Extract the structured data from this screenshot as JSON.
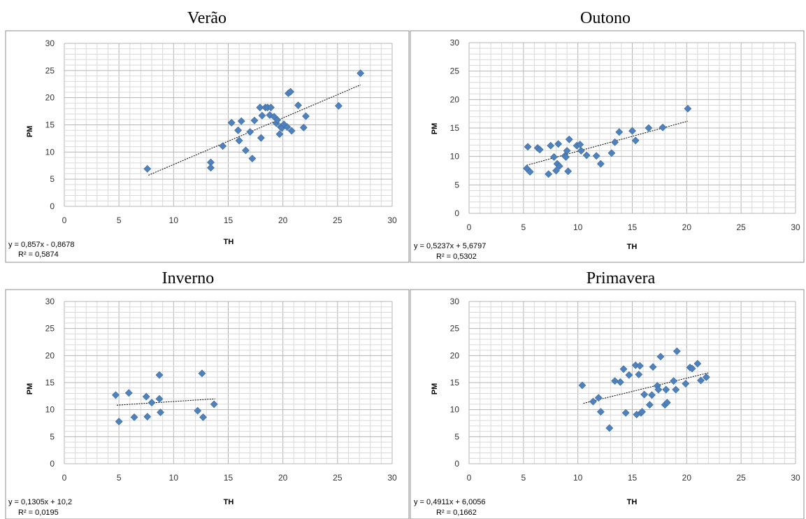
{
  "chart_data": [
    {
      "type": "scatter",
      "title": "Verão",
      "xlabel": "TH",
      "ylabel": "PM",
      "xlim": [
        0,
        30
      ],
      "ylim": [
        0,
        30
      ],
      "xticks": [
        0,
        5,
        10,
        15,
        20,
        25,
        30
      ],
      "yticks": [
        0,
        5,
        10,
        15,
        20,
        25,
        30
      ],
      "grid": true,
      "equation": "y = 0,857x - 0,8678",
      "r2": "R² = 0,5874",
      "trendline": {
        "slope": 0.857,
        "intercept": -0.8678,
        "x_range": [
          7.7,
          27.1
        ]
      },
      "x": [
        7.6,
        13.4,
        13.4,
        14.5,
        15.3,
        15.9,
        16.0,
        16.2,
        16.6,
        17.0,
        17.2,
        17.4,
        17.9,
        18.0,
        18.1,
        18.4,
        18.6,
        18.8,
        18.9,
        19.2,
        19.4,
        19.5,
        19.7,
        19.8,
        19.9,
        20.1,
        20.4,
        20.5,
        20.7,
        20.8,
        21.4,
        21.9,
        22.1,
        25.1,
        27.1
      ],
      "y": [
        6.9,
        8.1,
        7.1,
        11.1,
        15.4,
        14.0,
        12.1,
        15.7,
        10.3,
        13.7,
        8.8,
        15.8,
        18.2,
        12.6,
        16.7,
        18.2,
        18.2,
        16.8,
        18.2,
        16.5,
        15.3,
        15.9,
        13.3,
        14.6,
        14.4,
        15.1,
        14.6,
        20.8,
        21.1,
        13.9,
        18.6,
        14.5,
        16.6,
        18.5,
        24.5
      ]
    },
    {
      "type": "scatter",
      "title": "Outono",
      "xlabel": "TH",
      "ylabel": "PM",
      "xlim": [
        0,
        30
      ],
      "ylim": [
        0,
        30
      ],
      "xticks": [
        0,
        5,
        10,
        15,
        20,
        25,
        30
      ],
      "yticks": [
        0,
        5,
        10,
        15,
        20,
        25,
        30
      ],
      "grid": true,
      "equation": "y = 0,5237x + 5,6797",
      "r2": "R² = 0,5302",
      "trendline": {
        "slope": 0.5237,
        "intercept": 5.6797,
        "x_range": [
          5.3,
          20.1
        ]
      },
      "x": [
        5.3,
        5.4,
        5.6,
        6.3,
        6.5,
        7.3,
        7.5,
        7.8,
        8.0,
        8.1,
        8.2,
        8.3,
        8.8,
        8.9,
        9.0,
        9.1,
        9.2,
        9.9,
        10.2,
        10.3,
        10.8,
        11.7,
        12.1,
        13.1,
        13.4,
        13.8,
        15.0,
        15.3,
        16.5,
        17.8,
        20.1
      ],
      "y": [
        7.9,
        11.7,
        7.3,
        11.5,
        11.2,
        6.9,
        11.9,
        9.9,
        7.5,
        8.7,
        12.2,
        8.3,
        10.1,
        9.9,
        11.0,
        7.4,
        13.0,
        11.9,
        12.1,
        11.0,
        10.2,
        10.1,
        8.7,
        10.6,
        12.5,
        14.3,
        14.5,
        12.8,
        15.0,
        15.1,
        18.4
      ]
    },
    {
      "type": "scatter",
      "title": "Inverno",
      "xlabel": "TH",
      "ylabel": "PM",
      "xlim": [
        0,
        30
      ],
      "ylim": [
        0,
        30
      ],
      "xticks": [
        0,
        5,
        10,
        15,
        20,
        25,
        30
      ],
      "yticks": [
        0,
        5,
        10,
        15,
        20,
        25,
        30
      ],
      "grid": true,
      "equation": "y = 0,1305x + 10,2",
      "r2": "R² = 0,0195",
      "trendline": {
        "slope": 0.1305,
        "intercept": 10.2,
        "x_range": [
          4.8,
          13.8
        ]
      },
      "x": [
        4.7,
        5.0,
        5.9,
        6.4,
        7.5,
        7.6,
        8.0,
        8.7,
        8.7,
        8.8,
        12.2,
        12.6,
        12.7,
        13.7
      ],
      "y": [
        12.7,
        7.8,
        13.1,
        8.6,
        12.4,
        8.7,
        11.3,
        16.4,
        12.0,
        9.5,
        9.8,
        16.7,
        8.6,
        11.0
      ]
    },
    {
      "type": "scatter",
      "title": "Primavera",
      "xlabel": "TH",
      "ylabel": "PM",
      "xlim": [
        0,
        30
      ],
      "ylim": [
        0,
        30
      ],
      "xticks": [
        0,
        5,
        10,
        15,
        20,
        25,
        30
      ],
      "yticks": [
        0,
        5,
        10,
        15,
        20,
        25,
        30
      ],
      "grid": true,
      "equation": "y = 0,4911x + 6,0056",
      "r2": "R² = 0,1662",
      "trendline": {
        "slope": 0.4911,
        "intercept": 6.0056,
        "x_range": [
          10.5,
          22.0
        ]
      },
      "x": [
        10.4,
        11.4,
        11.9,
        12.1,
        12.9,
        13.4,
        13.9,
        14.2,
        14.4,
        14.7,
        15.3,
        15.4,
        15.6,
        15.7,
        15.8,
        15.9,
        16.1,
        16.6,
        16.8,
        16.9,
        17.3,
        17.4,
        17.6,
        18.0,
        18.1,
        18.2,
        18.8,
        19.0,
        19.1,
        19.9,
        20.3,
        20.5,
        21.0,
        21.3,
        21.8
      ],
      "y": [
        14.5,
        11.5,
        12.2,
        9.6,
        6.6,
        15.3,
        15.1,
        17.5,
        9.4,
        16.4,
        18.2,
        9.1,
        16.5,
        18.1,
        9.4,
        9.6,
        12.8,
        10.9,
        12.7,
        17.9,
        14.4,
        13.7,
        19.8,
        10.9,
        13.7,
        11.3,
        15.3,
        13.7,
        20.8,
        14.8,
        17.8,
        17.6,
        18.5,
        15.4,
        16.0
      ]
    }
  ]
}
